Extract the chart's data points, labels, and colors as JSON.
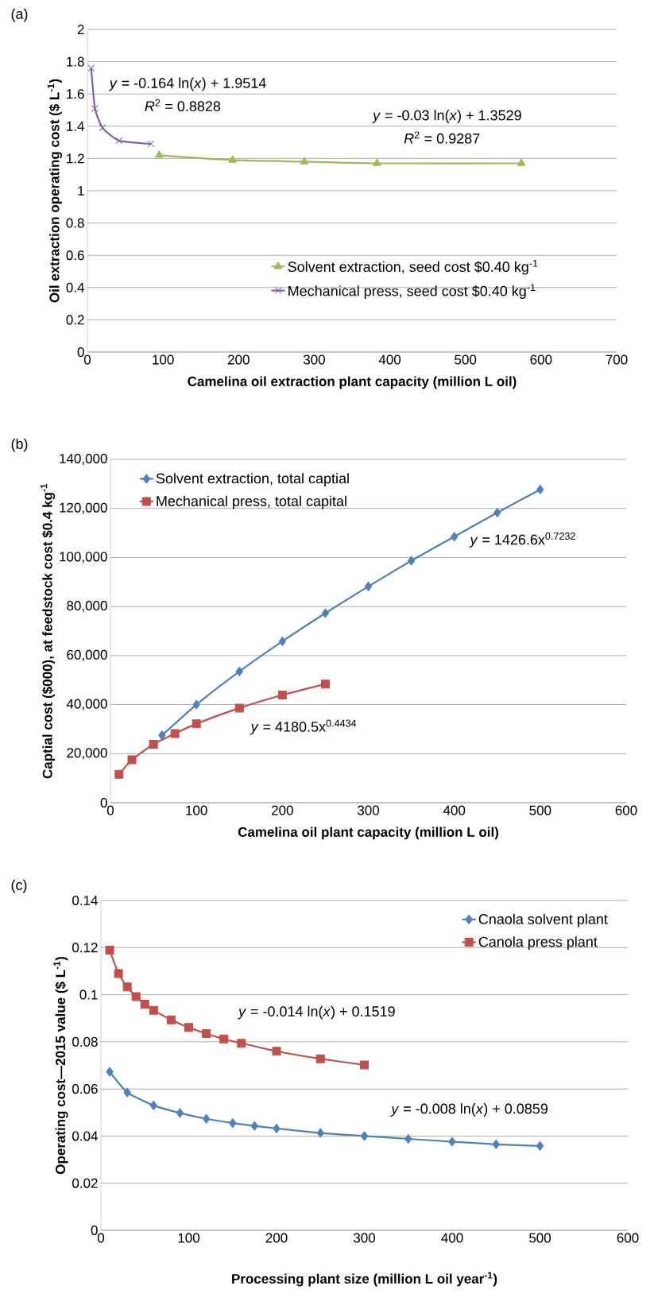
{
  "chart_data": [
    {
      "type": "line",
      "title": "(a)",
      "xlabel": "Camelina oil extraction plant capacity (million L oil)",
      "ylabel": "Oil extraction operating cost ($ L$^{-1}$)",
      "series": [
        {
          "name": "Solvent extraction, seed cost $0.40 kg$^{-1}$",
          "color": "#9bbb59",
          "marker": "triangle",
          "x": [
            95,
            192,
            287,
            383,
            574
          ],
          "values": [
            1.22,
            1.19,
            1.18,
            1.17,
            1.17
          ]
        },
        {
          "name": "Mechanical press, seed cost $0.40 kg$^{-1}$",
          "color": "#8064a2",
          "marker": "cross",
          "x": [
            5,
            10,
            20,
            42,
            84
          ],
          "values": [
            1.76,
            1.51,
            1.39,
            1.31,
            1.29
          ]
        }
      ],
      "annotations": [
        "*y* = -0.164 ln(*x*) + 1.9514",
        "*R*$^{2}$ = 0.8828",
        "*y* = -0.03 ln(*x*) + 1.3529",
        "*R*$^{2}$ = 0.9287"
      ],
      "xlim": [
        0,
        700
      ],
      "xticks": [
        0,
        100,
        200,
        300,
        400,
        500,
        600,
        700
      ],
      "ylim": [
        0,
        2
      ],
      "yticks": [
        0,
        0.2,
        0.4,
        0.6,
        0.8,
        1,
        1.2,
        1.4,
        1.6,
        1.8,
        2
      ],
      "grid": "y",
      "legend": "bottom right"
    },
    {
      "type": "line",
      "title": "(b)",
      "xlabel": "Camelina oil plant capacity (million L oil)",
      "ylabel": "Captial cost ($000), at feedstock cost $0.4 kg$^{-1}$",
      "series": [
        {
          "name": "Solvent extraction, total captial",
          "color": "#4f81bd",
          "marker": "diamond",
          "x": [
            60,
            100,
            150,
            200,
            250,
            300,
            350,
            400,
            450,
            500
          ],
          "values": [
            27500,
            40000,
            53500,
            65800,
            77300,
            88200,
            98700,
            108500,
            118300,
            127700
          ]
        },
        {
          "name": "Mechanical press, total capital",
          "color": "#c0504d",
          "marker": "square",
          "x": [
            10,
            25,
            50,
            75,
            100,
            150,
            200,
            250
          ],
          "values": [
            11600,
            17500,
            23800,
            28200,
            32200,
            38600,
            43900,
            48400
          ]
        }
      ],
      "annotations": [
        "*y* = 1426.6x$^{0.7232}$",
        "*y* = 4180.5x$^{0.4434}$"
      ],
      "xlim": [
        0,
        600
      ],
      "xticks": [
        0,
        100,
        200,
        300,
        400,
        500,
        600
      ],
      "ylim": [
        0,
        140000
      ],
      "yticks": [
        0,
        {
          "value": 20000,
          "label": "20,000"
        },
        {
          "value": 40000,
          "label": "40,000"
        },
        {
          "value": 60000,
          "label": "60,000"
        },
        {
          "value": 80000,
          "label": "80,000"
        },
        {
          "value": 100000,
          "label": "100,000"
        },
        {
          "value": 120000,
          "label": "120,000"
        },
        {
          "value": 140000,
          "label": "140,000"
        }
      ],
      "grid": "y",
      "legend": "top left"
    },
    {
      "type": "line",
      "title": "(c)",
      "xlabel": "Processing plant size (million L oil year$^{-1}$)",
      "ylabel": "Operating cost—2015 value ($ L$^{-1}$)",
      "series": [
        {
          "name": "Cnaola solvent plant",
          "color": "#4f81bd",
          "marker": "diamond",
          "x": [
            10,
            30,
            60,
            90,
            120,
            150,
            175,
            200,
            250,
            300,
            350,
            400,
            450,
            500
          ],
          "values": [
            0.0673,
            0.0585,
            0.053,
            0.0498,
            0.0473,
            0.0455,
            0.0443,
            0.0432,
            0.0413,
            0.04,
            0.0388,
            0.0376,
            0.0365,
            0.0358
          ]
        },
        {
          "name": "Canola press plant",
          "color": "#c0504d",
          "marker": "square",
          "x": [
            10,
            20,
            30,
            40,
            50,
            60,
            80,
            100,
            120,
            140,
            160,
            200,
            250,
            300
          ],
          "values": [
            0.1189,
            0.109,
            0.1033,
            0.0992,
            0.096,
            0.0934,
            0.0893,
            0.0861,
            0.0835,
            0.0812,
            0.0794,
            0.076,
            0.0728,
            0.0702
          ]
        }
      ],
      "annotations": [
        "*y* = -0.014 ln(*x*) + 0.1519",
        "*y* = -0.008 ln(*x*) + 0.0859"
      ],
      "xlim": [
        0,
        600
      ],
      "xticks": [
        0,
        100,
        200,
        300,
        400,
        500,
        600
      ],
      "ylim": [
        0,
        0.14
      ],
      "yticks": [
        0,
        0.02,
        0.04,
        0.06,
        0.08,
        0.1,
        0.12,
        0.14
      ],
      "grid": "y",
      "legend": "top right"
    }
  ]
}
